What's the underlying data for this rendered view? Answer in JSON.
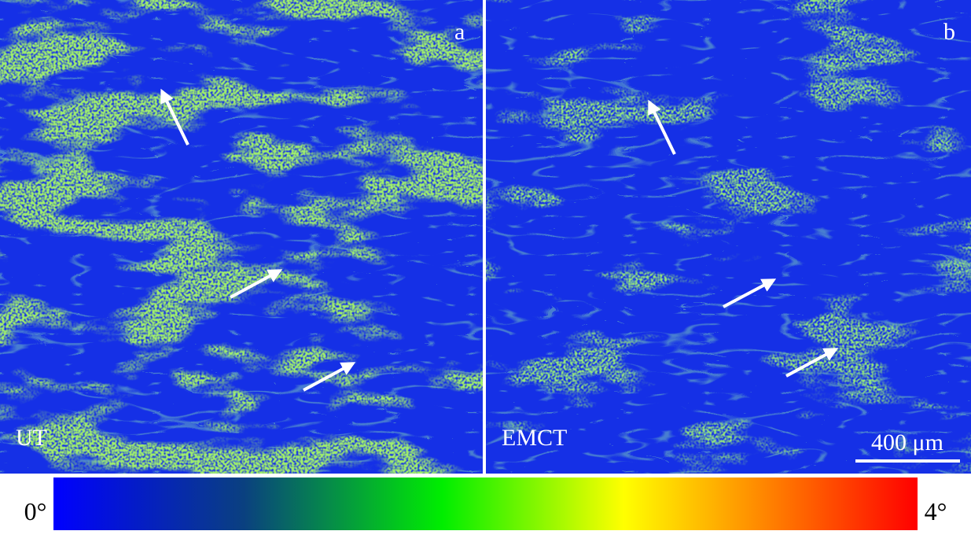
{
  "panels": [
    {
      "letter": "a",
      "label": "UT"
    },
    {
      "letter": "b",
      "label": "EMCT"
    }
  ],
  "scale_bar": "400 μm",
  "colorbar": {
    "min_label": "0°",
    "max_label": "4°"
  }
}
